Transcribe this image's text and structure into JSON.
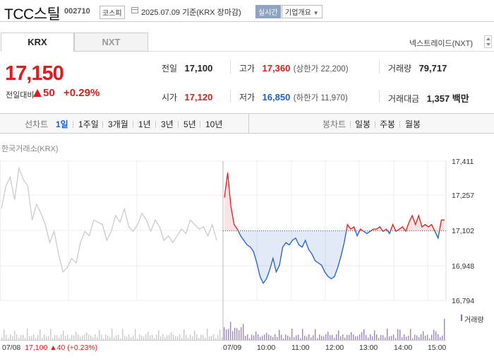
{
  "header": {
    "title": "TCC스틸",
    "code": "002710",
    "market": "코스피",
    "date": "2025.07.09",
    "basis": "기준(KRX 장마감)",
    "realtime": "실시간",
    "company_menu": "기업개요",
    "colors": {
      "up": "#e01b1b",
      "down": "#1e5ec8"
    }
  },
  "tabs": [
    {
      "label": "KRX",
      "active": true
    },
    {
      "label": "NXT",
      "active": false
    }
  ],
  "nxt_link": "넥스트레이드(NXT)",
  "quote": {
    "price": "17,150",
    "change_label": "전일대비",
    "change": "50",
    "change_pct": "+0.29%"
  },
  "stats": {
    "prev": {
      "label": "전일",
      "value": "17,100"
    },
    "high": {
      "label": "고가",
      "value": "17,360",
      "sub": "(상한가 22,200)"
    },
    "volume": {
      "label": "거래량",
      "value": "79,717"
    },
    "open": {
      "label": "시가",
      "value": "17,120"
    },
    "low": {
      "label": "저가",
      "value": "16,850",
      "sub": "(하한가 11,970)"
    },
    "amount": {
      "label": "거래대금",
      "value": "1,357 백만"
    }
  },
  "toolbar": {
    "line_label": "선차트",
    "line_periods": [
      "1일",
      "1주일",
      "3개월",
      "1년",
      "3년",
      "5년",
      "10년"
    ],
    "selected_period": "1일",
    "candle_label": "봉차트",
    "candle_periods": [
      "일봉",
      "주봉",
      "월봉"
    ]
  },
  "chart_data": {
    "type": "line",
    "exchange_label": "한국거래소(KRX)",
    "y_ticks": [
      "17,411",
      "17,257",
      "17,102",
      "16,948",
      "16,794"
    ],
    "ylim": [
      16794,
      17411
    ],
    "base_price": 17102,
    "x_ticks": [
      "07/08",
      "07/09",
      "10:00",
      "11:00",
      "12:00",
      "13:00",
      "14:00",
      "15:00"
    ],
    "volume_legend": "거래량",
    "prev_day_summary": {
      "date": "07/08",
      "close": "17,100",
      "change": "40",
      "pct": "(+0.23%)"
    },
    "prev_day_series": [
      17200,
      17300,
      17340,
      17240,
      17380,
      17330,
      17300,
      17150,
      17220,
      17180,
      17130,
      17050,
      17100,
      17000,
      16920,
      16940,
      16980,
      16960,
      17050,
      17100,
      17080,
      17150,
      17140,
      17130,
      17060,
      17100,
      17170,
      17140,
      17200,
      17120,
      17100,
      17130,
      17180,
      17150,
      17100,
      17150,
      17120,
      17060,
      17080,
      17050,
      17080,
      17110,
      17090,
      17150,
      17130,
      17110,
      17120,
      17080,
      17130,
      17060
    ],
    "today_series": [
      17250,
      17360,
      17210,
      17130,
      17110,
      17080,
      17060,
      17040,
      17030,
      17010,
      16960,
      16900,
      16870,
      16890,
      16930,
      16980,
      16920,
      16950,
      17030,
      17050,
      17040,
      17060,
      17070,
      17040,
      17030,
      17060,
      17020,
      17000,
      16970,
      16960,
      16950,
      16920,
      16900,
      16890,
      16900,
      16940,
      16990,
      17050,
      17130,
      17110,
      17120,
      17080,
      17110,
      17100,
      17090,
      17100,
      17110,
      17110,
      17120,
      17100,
      17110,
      17090,
      17130,
      17100,
      17110,
      17120,
      17100,
      17140,
      17170,
      17130,
      17170,
      17120,
      17130,
      17120,
      17130,
      17100,
      17070,
      17150,
      17150
    ]
  }
}
